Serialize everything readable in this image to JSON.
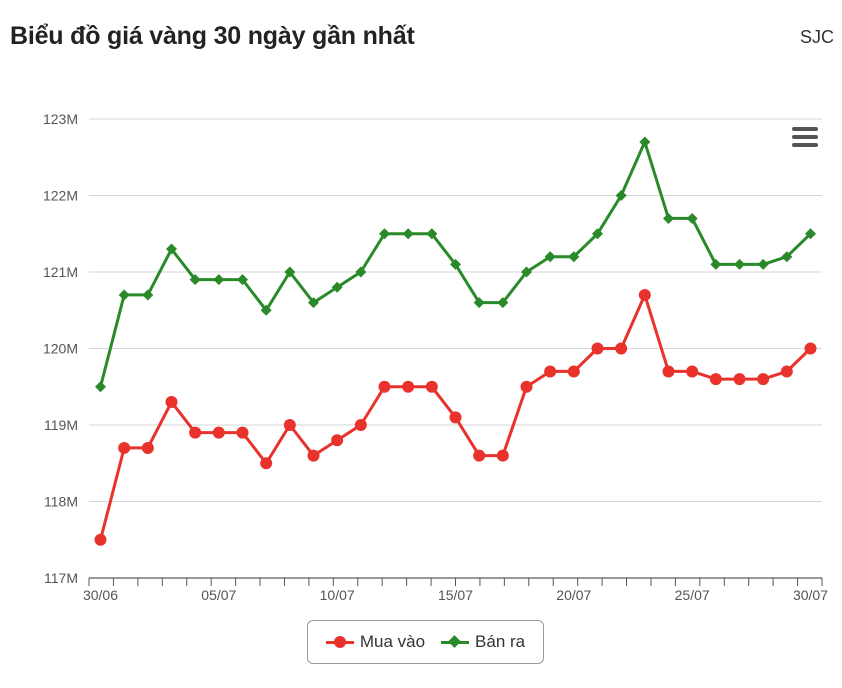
{
  "header": {
    "title": "Biểu đồ giá vàng 30 ngày gần nhất",
    "source": "SJC"
  },
  "chart_data": {
    "type": "line",
    "x": [
      "30/06",
      "01/07",
      "02/07",
      "03/07",
      "04/07",
      "05/07",
      "06/07",
      "07/07",
      "08/07",
      "09/07",
      "10/07",
      "11/07",
      "12/07",
      "13/07",
      "14/07",
      "15/07",
      "16/07",
      "17/07",
      "18/07",
      "19/07",
      "20/07",
      "21/07",
      "22/07",
      "23/07",
      "24/07",
      "25/07",
      "26/07",
      "27/07",
      "28/07",
      "29/07",
      "30/07"
    ],
    "x_tick_labels": [
      "30/06",
      "05/07",
      "10/07",
      "15/07",
      "20/07",
      "25/07",
      "30/07"
    ],
    "y_ticks": [
      117,
      118,
      119,
      120,
      121,
      122,
      123
    ],
    "y_tick_labels": [
      "117M",
      "118M",
      "119M",
      "120M",
      "121M",
      "122M",
      "123M"
    ],
    "ylim": [
      117,
      123
    ],
    "grid": true,
    "legend_position": "bottom-center",
    "series": [
      {
        "name": "Mua vào",
        "color": "#e8322b",
        "marker": "circle",
        "values": [
          117.5,
          118.7,
          118.7,
          119.3,
          118.9,
          118.9,
          118.9,
          118.5,
          119.0,
          118.6,
          118.8,
          119.0,
          119.5,
          119.5,
          119.5,
          119.1,
          118.6,
          118.6,
          119.5,
          119.7,
          119.7,
          120.0,
          120.0,
          120.7,
          119.7,
          119.7,
          119.6,
          119.6,
          119.6,
          119.7,
          120.0
        ]
      },
      {
        "name": "Bán ra",
        "color": "#2a8a2a",
        "marker": "diamond",
        "values": [
          119.5,
          120.7,
          120.7,
          121.3,
          120.9,
          120.9,
          120.9,
          120.5,
          121.0,
          120.6,
          120.8,
          121.0,
          121.5,
          121.5,
          121.5,
          121.1,
          120.6,
          120.6,
          121.0,
          121.2,
          121.2,
          121.5,
          122.0,
          122.7,
          121.7,
          121.7,
          121.1,
          121.1,
          121.1,
          121.2,
          121.5
        ]
      }
    ]
  }
}
